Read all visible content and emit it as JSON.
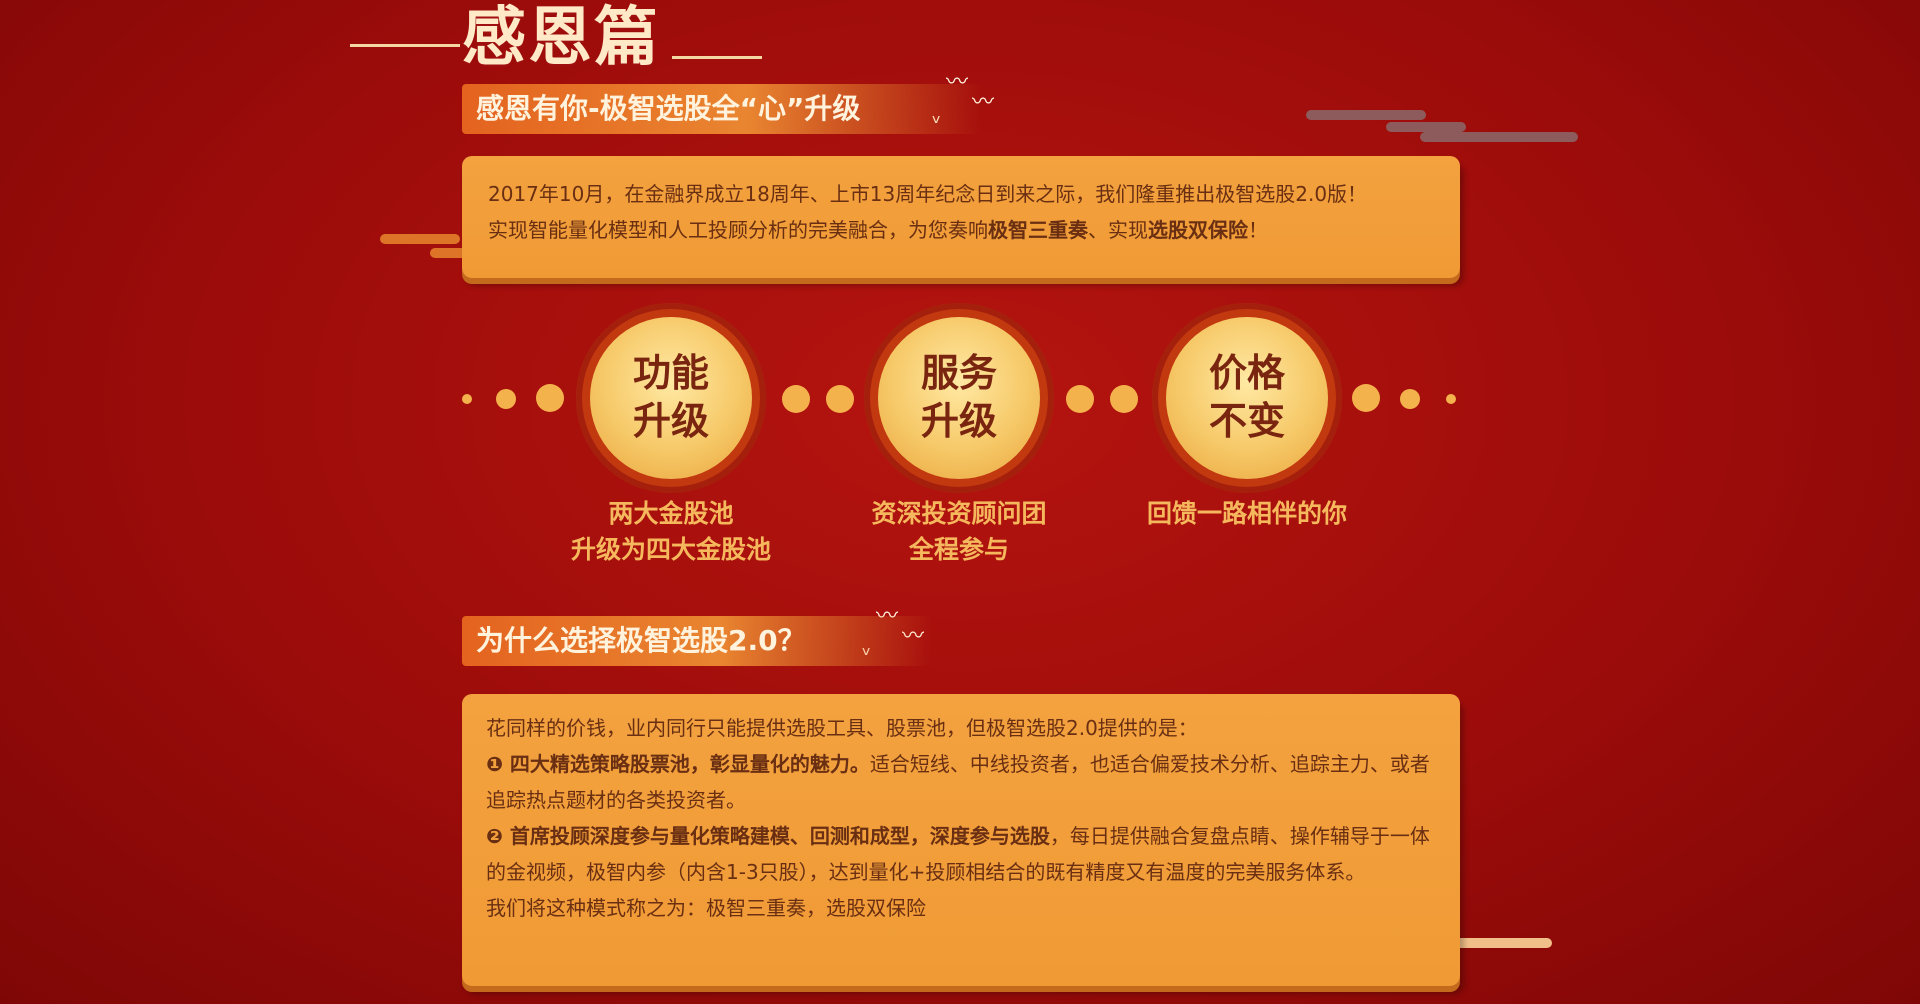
{
  "header": {
    "section_title": "感恩篇",
    "ribbon1": "感恩有你-极智选股全“心”升级",
    "ribbon2": "为什么选择极智选股2.0？"
  },
  "intro": {
    "line1": "2017年10月，在金融界成立18周年、上市13周年纪念日到来之际，我们隆重推出极智选股2.0版！",
    "line2_a": "实现智能量化模型和人工投顾分析的完美融合，为您奏响",
    "line2_b": "极智三重奏",
    "line2_c": "、实现",
    "line2_d": "选股双保险",
    "line2_e": "！"
  },
  "features": [
    {
      "title_l1": "功能",
      "title_l2": "升级",
      "cap_l1": "两大金股池",
      "cap_l2": "升级为四大金股池"
    },
    {
      "title_l1": "服务",
      "title_l2": "升级",
      "cap_l1": "资深投资顾问团",
      "cap_l2": "全程参与"
    },
    {
      "title_l1": "价格",
      "title_l2": "不变",
      "cap_l1": "回馈一路相伴的你",
      "cap_l2": ""
    }
  ],
  "why": {
    "intro": "花同样的价钱，业内同行只能提供选股工具、股票池，但极智选股2.0提供的是：",
    "p1_bold": "❶ 四大精选策略股票池，彰显量化的魅力。",
    "p1_rest": "适合短线、中线投资者，也适合偏爱技术分析、追踪主力、或者追踪热点题材的各类投资者。",
    "p2_bold": "❷ 首席投顾深度参与量化策略建模、回测和成型，深度参与选股",
    "p2_rest": "，每日提供融合复盘点睛、操作辅导于一体的金视频，极智内参（内含1-3只股），达到量化+投顾相结合的既有精度又有温度的完美服务体系。",
    "closing": "我们将这种模式称之为：极智三重奏，选股双保险"
  },
  "colors": {
    "background": "#9c0c0a",
    "panel": "#f09a35",
    "ribbon": "#e4631f",
    "gold": "#f6c867",
    "text_dark": "#6a2f12",
    "caption": "#f6b85d"
  }
}
